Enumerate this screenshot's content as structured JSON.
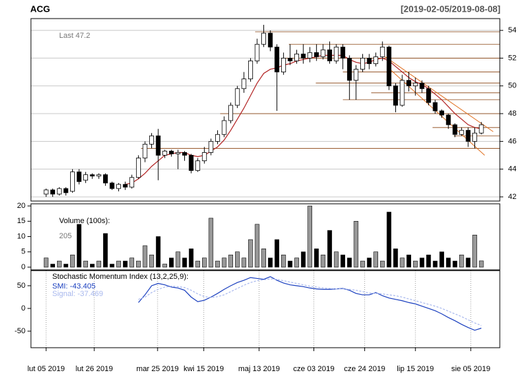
{
  "chart_data": [
    {
      "type": "candlestick",
      "title": "ACG",
      "subtitle": "[2019-02-05/2019-08-08]",
      "annotation": "Last 47.2",
      "open": [
        42.2,
        42.5,
        42.2,
        42.6,
        42.4,
        43.8,
        43.2,
        43.6,
        43.5,
        43.6,
        43.0,
        42.6,
        42.9,
        42.7,
        43.4,
        44.8,
        45.8,
        46.4,
        45.0,
        45.3,
        45.1,
        45.2,
        45.0,
        43.9,
        44.6,
        45.2,
        46.0,
        46.5,
        47.5,
        48.6,
        49.8,
        50.5,
        51.8,
        53.0,
        53.8,
        52.8,
        51.0,
        52.0,
        51.8,
        52.3,
        52.0,
        52.4,
        52.1,
        52.6,
        51.8,
        52.8,
        52.0,
        50.4,
        51.2,
        52.0,
        51.6,
        52.1,
        52.8,
        50.0,
        48.6,
        50.4,
        50.0,
        50.2,
        49.8,
        48.8,
        48.2,
        47.9,
        47.2,
        46.5,
        46.8,
        46.0,
        46.6
      ],
      "high": [
        42.6,
        42.6,
        42.7,
        42.7,
        44.0,
        44.0,
        43.8,
        43.7,
        43.7,
        43.7,
        43.1,
        43.0,
        43.1,
        43.6,
        45.0,
        46.0,
        46.6,
        46.9,
        45.4,
        45.4,
        45.4,
        45.3,
        45.1,
        44.8,
        45.6,
        46.2,
        46.8,
        47.8,
        48.8,
        50.0,
        51.0,
        52.0,
        53.4,
        54.4,
        54.0,
        53.0,
        52.4,
        53.0,
        52.6,
        53.0,
        52.8,
        53.0,
        53.0,
        53.2,
        53.0,
        53.0,
        52.2,
        51.5,
        52.3,
        52.3,
        52.4,
        53.2,
        52.9,
        50.2,
        50.8,
        51.0,
        50.6,
        50.4,
        50.0,
        49.0,
        48.3,
        48.0,
        47.3,
        47.0,
        47.0,
        47.0,
        47.4
      ],
      "low": [
        42.0,
        42.0,
        42.1,
        42.1,
        42.3,
        42.9,
        43.0,
        43.3,
        43.3,
        42.8,
        42.5,
        42.4,
        42.5,
        42.6,
        43.3,
        44.5,
        45.5,
        43.2,
        44.8,
        44.9,
        44.0,
        44.6,
        43.7,
        43.8,
        44.4,
        45.0,
        45.8,
        46.3,
        47.3,
        48.4,
        49.5,
        50.3,
        51.6,
        52.8,
        52.5,
        48.2,
        50.8,
        51.5,
        51.6,
        51.6,
        51.7,
        51.8,
        51.9,
        51.6,
        51.6,
        51.2,
        49.0,
        49.0,
        51.0,
        51.2,
        51.4,
        51.8,
        49.7,
        48.1,
        48.5,
        49.6,
        49.3,
        49.5,
        48.6,
        48.0,
        47.7,
        46.9,
        46.3,
        46.4,
        45.6,
        45.5,
        46.5
      ],
      "close": [
        42.5,
        42.2,
        42.6,
        42.3,
        43.8,
        43.1,
        43.6,
        43.5,
        43.6,
        43.0,
        42.6,
        42.9,
        42.7,
        43.4,
        44.8,
        45.8,
        46.4,
        45.0,
        45.3,
        45.1,
        45.2,
        45.0,
        43.9,
        44.6,
        45.2,
        46.0,
        46.5,
        47.5,
        48.6,
        49.8,
        50.5,
        51.8,
        53.0,
        53.8,
        52.8,
        51.0,
        52.0,
        51.8,
        52.3,
        52.0,
        52.4,
        52.1,
        52.6,
        51.8,
        52.8,
        52.0,
        50.4,
        51.2,
        52.0,
        51.6,
        52.1,
        52.8,
        50.0,
        48.6,
        50.4,
        50.0,
        50.2,
        49.8,
        48.8,
        48.2,
        47.9,
        47.2,
        46.5,
        46.8,
        46.0,
        46.6,
        47.2
      ],
      "up_color": "#ffffff",
      "down_color": "#000000",
      "ma": {
        "color": "#b22222",
        "values": [
          null,
          null,
          null,
          null,
          null,
          null,
          null,
          null,
          null,
          null,
          null,
          null,
          42.9,
          43.0,
          43.3,
          43.7,
          44.2,
          44.6,
          45.0,
          45.1,
          45.2,
          45.2,
          45.0,
          44.9,
          45.0,
          45.3,
          45.6,
          46.1,
          46.8,
          47.6,
          48.4,
          49.3,
          50.2,
          50.9,
          51.2,
          51.3,
          51.5,
          51.6,
          51.8,
          51.9,
          52.0,
          52.1,
          52.2,
          52.2,
          52.2,
          52.2,
          51.9,
          51.7,
          51.6,
          51.7,
          51.9,
          52.0,
          51.8,
          51.4,
          51.0,
          50.6,
          50.3,
          50.1,
          49.8,
          49.4,
          49.0,
          48.5,
          48.0,
          47.6,
          47.2,
          47.0,
          46.9
        ]
      },
      "hlines": {
        "color": "#8b4513",
        "lines": [
          {
            "value": 53.9,
            "from": 31.7
          },
          {
            "value": 53.0,
            "from": 36.8
          },
          {
            "value": 52.0,
            "from": 35.7
          },
          {
            "value": 51.0,
            "from": 45.0
          },
          {
            "value": 50.2,
            "from": 40.9
          },
          {
            "value": 49.5,
            "from": 49.3
          },
          {
            "value": 49.0,
            "from": 45.0
          },
          {
            "value": 48.0,
            "from": 26.4
          },
          {
            "value": 47.0,
            "from": 58.6
          },
          {
            "value": 46.4,
            "from": 61.8
          },
          {
            "value": 45.5,
            "from": 14.4
          }
        ]
      },
      "trendlines": {
        "color": "#e07020",
        "lines": [
          {
            "x": [
              51.4,
              67.8
            ],
            "y": [
              52.1,
              46.7
            ]
          },
          {
            "x": [
              51.9,
              66.5
            ],
            "y": [
              51.3,
              45.0
            ]
          }
        ]
      },
      "ylim": [
        41.7,
        54.85
      ],
      "yticks": [
        42,
        44,
        46,
        48,
        50,
        52,
        54
      ],
      "xlim": [
        -2.3,
        68.8
      ],
      "xticks": [
        {
          "value": 0,
          "label": "lut 05 2019"
        },
        {
          "value": 7.3,
          "label": "lut 26 2019"
        },
        {
          "value": 16.9,
          "label": "mar 25 2019"
        },
        {
          "value": 23.9,
          "label": "kwi 15 2019"
        },
        {
          "value": 32.3,
          "label": "maj 13 2019"
        },
        {
          "value": 40.6,
          "label": "cze 03 2019"
        },
        {
          "value": 48.3,
          "label": "cze 24 2019"
        },
        {
          "value": 56.0,
          "label": "lip 15 2019"
        },
        {
          "value": 64.4,
          "label": "sie 05 2019"
        }
      ],
      "grid": true
    },
    {
      "type": "bar",
      "title": "Volume (100s):",
      "annotation": "205",
      "values": [
        3,
        1,
        2,
        1,
        4,
        14,
        2,
        1,
        2,
        11,
        1,
        2,
        2,
        3,
        2,
        7,
        4,
        10,
        1,
        3,
        5,
        3,
        6,
        2,
        3,
        16,
        2,
        3,
        4,
        5,
        3,
        9,
        14,
        6,
        3,
        9,
        4,
        2,
        3,
        5,
        20,
        6,
        4,
        12,
        5,
        4,
        3,
        15,
        2,
        3,
        5,
        2,
        18,
        6,
        3,
        4,
        2,
        3,
        4,
        2,
        5,
        3,
        2,
        4,
        3,
        10.5,
        2.05
      ],
      "up_color": "#999999",
      "down_color": "#000000",
      "ylim": [
        -0.9,
        20.7
      ],
      "yticks": [
        0,
        5,
        10,
        15,
        20
      ]
    },
    {
      "type": "line",
      "title": "Stochastic Momentum Index (13,2,25,9):",
      "series": [
        {
          "name": "SMI: -43.405",
          "color": "#1a3fbf",
          "values": [
            null,
            null,
            null,
            null,
            null,
            null,
            null,
            null,
            null,
            null,
            null,
            null,
            null,
            null,
            13,
            30,
            50,
            55,
            52,
            47,
            45,
            40,
            25,
            15,
            18,
            25,
            33,
            42,
            50,
            57,
            62,
            68,
            66,
            64,
            70,
            62,
            56,
            52,
            50,
            48,
            45,
            43,
            42,
            42,
            43,
            44,
            40,
            33,
            30,
            30,
            35,
            28,
            23,
            20,
            17,
            13,
            10,
            5,
            0,
            -5,
            -12,
            -20,
            -27,
            -35,
            -42,
            -48,
            -43.405
          ]
        },
        {
          "name": "Signal: -37.469",
          "color": "#a8b8ee",
          "values": [
            null,
            null,
            null,
            null,
            null,
            null,
            null,
            null,
            null,
            null,
            null,
            null,
            null,
            null,
            20,
            25,
            35,
            42,
            47,
            49,
            48,
            46,
            40,
            32,
            26,
            24,
            26,
            30,
            37,
            44,
            51,
            57,
            61,
            63,
            65,
            64,
            61,
            58,
            55,
            52,
            49,
            47,
            45,
            44,
            43,
            43,
            42,
            40,
            37,
            34,
            33,
            32,
            30,
            28,
            25,
            21,
            17,
            13,
            9,
            5,
            0,
            -6,
            -12,
            -18,
            -25,
            -32,
            -37.469
          ]
        }
      ],
      "ylim": [
        -86.4,
        83.3
      ],
      "yticks": [
        -50,
        0,
        50
      ]
    }
  ]
}
